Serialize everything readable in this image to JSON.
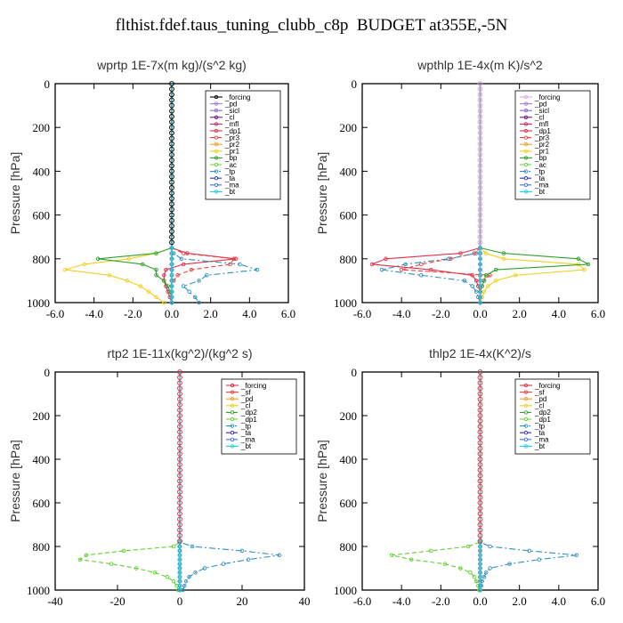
{
  "figure_title": "flthist.fdef.taus_tuning_clubb_c8p  BUDGET at355E,-5N",
  "chart_data": [
    {
      "type": "line",
      "title": "wprtp   1E-7x(m kg)/(s^2 kg)",
      "ylabel": "Pressure [hPa]",
      "xlim": [
        -6,
        6
      ],
      "ylim": [
        1000,
        0
      ],
      "y_inverted": true,
      "xticks": [
        -6,
        -4,
        -2,
        0,
        2,
        4,
        6
      ],
      "xtick_labels": [
        "-6.0",
        "-4.0",
        "-2.0",
        "0.0",
        "2.0",
        "4.0",
        "6.0"
      ],
      "yticks": [
        0,
        200,
        400,
        600,
        800,
        1000
      ],
      "ytick_labels": [
        "0",
        "200",
        "400",
        "600",
        "800",
        "1000"
      ],
      "grid": false,
      "legend_position": "top-right",
      "pressure_levels": [
        750,
        775,
        800,
        825,
        850,
        875,
        900,
        925,
        950,
        975,
        1000
      ],
      "series": [
        {
          "name": "_forcing",
          "color": "#000000",
          "style": "solid",
          "values": [
            0,
            0,
            0,
            0,
            0,
            0,
            0,
            0,
            0,
            0,
            0
          ]
        },
        {
          "name": "_pd",
          "color": "#b07cd8",
          "style": "solid",
          "values": [
            0,
            0,
            0,
            0,
            0,
            0,
            0,
            0,
            0,
            0,
            0
          ]
        },
        {
          "name": "_sicl",
          "color": "#8a6ad0",
          "style": "solid",
          "values": [
            0,
            0,
            0,
            0,
            0,
            0,
            0,
            0,
            0,
            0,
            0
          ]
        },
        {
          "name": "_cl",
          "color": "#6a1a8a",
          "style": "solid",
          "values": [
            0,
            0,
            0,
            0,
            0,
            0,
            0,
            0,
            0,
            0,
            0
          ]
        },
        {
          "name": "_mfl",
          "color": "#c0305a",
          "style": "solid",
          "values": [
            0,
            0,
            0,
            0,
            0,
            0,
            0,
            0,
            0,
            0,
            0
          ]
        },
        {
          "name": "_dp1",
          "color": "#e0304a",
          "style": "solid",
          "values": [
            0,
            0.8,
            3.3,
            0.6,
            -0.3,
            -0.4,
            -0.4,
            -0.3,
            -0.2,
            -0.1,
            0
          ]
        },
        {
          "name": "_pr3",
          "color": "#f04040",
          "style": "dashed",
          "values": [
            0,
            0.6,
            3.2,
            3.0,
            1.0,
            0.3,
            0.1,
            0,
            0,
            0,
            0
          ]
        },
        {
          "name": "_pr2",
          "color": "#f0a030",
          "style": "solid",
          "values": [
            0,
            0,
            0,
            0,
            0,
            0,
            0,
            0,
            0,
            0,
            0
          ]
        },
        {
          "name": "_pr1",
          "color": "#f0d020",
          "style": "solid",
          "values": [
            0,
            -0.8,
            -2.2,
            -4.5,
            -5.5,
            -3.2,
            -2.3,
            -1.6,
            -1.2,
            -0.8,
            -0.4
          ]
        },
        {
          "name": "_bp",
          "color": "#30a030",
          "style": "solid",
          "values": [
            0,
            -0.8,
            -3.8,
            -1.5,
            -0.8,
            -0.8,
            -0.4,
            -0.2,
            -0.1,
            0,
            0
          ]
        },
        {
          "name": "_ac",
          "color": "#60d030",
          "style": "dashed",
          "values": [
            0,
            0,
            0,
            0,
            0,
            0,
            0,
            0,
            0,
            0,
            0
          ]
        },
        {
          "name": "_tp",
          "color": "#3090c0",
          "style": "dashdot",
          "values": [
            0,
            0.1,
            0.5,
            3.5,
            4.4,
            1.8,
            1.4,
            0.6,
            0.9,
            1.2,
            1.4
          ]
        },
        {
          "name": "_ta",
          "color": "#3030b0",
          "style": "dashed",
          "values": [
            0,
            0,
            0,
            0,
            0,
            0,
            0,
            0,
            0,
            0,
            0
          ]
        },
        {
          "name": "_ma",
          "color": "#4070f0",
          "style": "dashed",
          "values": [
            0,
            0,
            0,
            0,
            0,
            0,
            0,
            0,
            0,
            0,
            0
          ]
        },
        {
          "name": "_bt",
          "color": "#20d0e0",
          "style": "solid",
          "values": [
            0,
            0,
            0,
            0,
            0,
            0,
            0,
            0,
            0,
            0,
            0
          ]
        }
      ]
    },
    {
      "type": "line",
      "title": "wpthlp   1E-4x(m K)/s^2",
      "ylabel": "Pressure [hPa]",
      "xlim": [
        -6,
        6
      ],
      "ylim": [
        1000,
        0
      ],
      "y_inverted": true,
      "xticks": [
        -6,
        -4,
        -2,
        0,
        2,
        4,
        6
      ],
      "xtick_labels": [
        "-6.0",
        "-4.0",
        "-2.0",
        "0.0",
        "2.0",
        "4.0",
        "6.0"
      ],
      "yticks": [
        0,
        200,
        400,
        600,
        800,
        1000
      ],
      "ytick_labels": [
        "0",
        "200",
        "400",
        "600",
        "800",
        "1000"
      ],
      "grid": false,
      "legend_position": "top-right",
      "pressure_levels": [
        750,
        775,
        800,
        825,
        850,
        875,
        900,
        925,
        950,
        975,
        1000
      ],
      "series": [
        {
          "name": "_forcing",
          "color": "#d8a8e8",
          "style": "solid",
          "values": [
            0,
            0,
            0,
            0,
            0,
            0,
            0,
            0,
            0,
            0,
            0
          ]
        },
        {
          "name": "_pd",
          "color": "#b07cd8",
          "style": "solid",
          "values": [
            0,
            0,
            0,
            0,
            0,
            0,
            0,
            0,
            0,
            0,
            0
          ]
        },
        {
          "name": "_sicl",
          "color": "#8a6ad0",
          "style": "solid",
          "values": [
            0,
            0,
            0,
            0,
            0,
            0,
            0,
            0,
            0,
            0,
            0
          ]
        },
        {
          "name": "_cl",
          "color": "#6a1a8a",
          "style": "solid",
          "values": [
            0,
            0,
            0,
            0,
            0,
            0,
            0,
            0,
            0,
            0,
            0
          ]
        },
        {
          "name": "_mfl",
          "color": "#c0305a",
          "style": "solid",
          "values": [
            0,
            0,
            0,
            0,
            0,
            0,
            0,
            0,
            0,
            0,
            0
          ]
        },
        {
          "name": "_dp1",
          "color": "#e0304a",
          "style": "solid",
          "values": [
            0,
            -1.0,
            -4.8,
            -5.5,
            -2.5,
            -0.4,
            -0.2,
            -0.1,
            0,
            0,
            0
          ]
        },
        {
          "name": "_pr3",
          "color": "#f04040",
          "style": "dashed",
          "values": [
            0,
            -0.3,
            -1.5,
            -3.0,
            -4.0,
            0.5,
            0.2,
            0.1,
            0,
            0,
            0
          ]
        },
        {
          "name": "_pr2",
          "color": "#f0a030",
          "style": "solid",
          "values": [
            0,
            0,
            0,
            0,
            0,
            0,
            0,
            0,
            0,
            0,
            0
          ]
        },
        {
          "name": "_pr1",
          "color": "#f0d020",
          "style": "solid",
          "values": [
            0,
            0.3,
            1.2,
            5.0,
            5.3,
            1.8,
            0.8,
            0.4,
            0.2,
            0.1,
            0
          ]
        },
        {
          "name": "_bp",
          "color": "#30a030",
          "style": "solid",
          "values": [
            0,
            1.2,
            5.0,
            5.5,
            0.8,
            0.3,
            0.2,
            0.1,
            0,
            0,
            0
          ]
        },
        {
          "name": "_ac",
          "color": "#60d030",
          "style": "dashed",
          "values": [
            0,
            0,
            0,
            0,
            0,
            0,
            0,
            0,
            0,
            0,
            0
          ]
        },
        {
          "name": "_tp",
          "color": "#3090c0",
          "style": "dashdot",
          "values": [
            0,
            -0.2,
            -1.6,
            -3.8,
            -5.0,
            -3.0,
            -0.8,
            -0.4,
            -0.2,
            -0.1,
            0
          ]
        },
        {
          "name": "_ta",
          "color": "#3030b0",
          "style": "dashed",
          "values": [
            0,
            0,
            0,
            0,
            0,
            0,
            0,
            0,
            0,
            0,
            0
          ]
        },
        {
          "name": "_ma",
          "color": "#4070f0",
          "style": "dashed",
          "values": [
            0,
            0,
            0,
            0,
            0,
            0,
            0,
            0,
            0,
            0,
            0
          ]
        },
        {
          "name": "_bt",
          "color": "#20d0e0",
          "style": "solid",
          "values": [
            0,
            0,
            0,
            0,
            0,
            0,
            0,
            0,
            0,
            0,
            0
          ]
        }
      ]
    },
    {
      "type": "line",
      "title": "rtp2   1E-11x(kg^2)/(kg^2 s)",
      "ylabel": "Pressure [hPa]",
      "xlim": [
        -40,
        40
      ],
      "ylim": [
        1000,
        0
      ],
      "y_inverted": true,
      "xticks": [
        -40,
        -20,
        0,
        20,
        40
      ],
      "xtick_labels": [
        "-40",
        "-20",
        "0",
        "20",
        "40"
      ],
      "yticks": [
        0,
        200,
        400,
        600,
        800,
        1000
      ],
      "ytick_labels": [
        "0",
        "200",
        "400",
        "600",
        "800",
        "1000"
      ],
      "grid": false,
      "legend_position": "top-right",
      "pressure_levels": [
        780,
        800,
        820,
        840,
        860,
        880,
        900,
        920,
        940,
        960,
        980,
        1000
      ],
      "series": [
        {
          "name": "_forcing",
          "color": "#e0304a",
          "style": "solid",
          "values": [
            0,
            0,
            0,
            0,
            0,
            0,
            0,
            0,
            0,
            0,
            0,
            0
          ]
        },
        {
          "name": "_sf",
          "color": "#f04040",
          "style": "solid",
          "values": [
            0,
            0,
            0,
            0,
            0,
            0,
            0,
            0,
            0,
            0,
            0,
            0
          ]
        },
        {
          "name": "_pd",
          "color": "#f0a030",
          "style": "solid",
          "values": [
            0,
            0,
            0,
            0,
            0,
            0,
            0,
            0,
            0,
            0,
            0,
            0
          ]
        },
        {
          "name": "_cl",
          "color": "#f0d020",
          "style": "solid",
          "values": [
            0,
            0,
            0,
            0,
            0,
            0,
            0,
            0,
            0,
            0,
            0,
            0
          ]
        },
        {
          "name": "_dp2",
          "color": "#30a030",
          "style": "dashed",
          "values": [
            0,
            0,
            0,
            0,
            0,
            0,
            0,
            0,
            0,
            0,
            0,
            0
          ]
        },
        {
          "name": "_dp1",
          "color": "#60d030",
          "style": "dashed",
          "values": [
            0,
            -2,
            -18,
            -30,
            -32,
            -22,
            -14,
            -8,
            -4,
            -2,
            -1,
            -0.5
          ]
        },
        {
          "name": "_tp",
          "color": "#3090c0",
          "style": "dashdot",
          "values": [
            0,
            4,
            20,
            32,
            22,
            14,
            8,
            5,
            3,
            2,
            1.5,
            1
          ]
        },
        {
          "name": "_ta",
          "color": "#3030b0",
          "style": "dashed",
          "values": [
            0,
            0,
            0,
            0,
            0,
            0,
            0,
            0,
            0,
            0,
            0,
            0
          ]
        },
        {
          "name": "_ma",
          "color": "#4070f0",
          "style": "dashed",
          "values": [
            0,
            0,
            0,
            0,
            0,
            0,
            0,
            0,
            0,
            0,
            0,
            0
          ]
        },
        {
          "name": "_bt",
          "color": "#20d0e0",
          "style": "solid",
          "values": [
            0,
            0,
            0,
            0,
            0,
            0,
            0,
            0,
            0,
            0,
            0,
            0
          ]
        }
      ]
    },
    {
      "type": "line",
      "title": "thlp2   1E-4x(K^2)/s",
      "ylabel": "Pressure [hPa]",
      "xlim": [
        -6,
        6
      ],
      "ylim": [
        1000,
        0
      ],
      "y_inverted": true,
      "xticks": [
        -6,
        -4,
        -2,
        0,
        2,
        4,
        6
      ],
      "xtick_labels": [
        "-6.0",
        "-4.0",
        "-2.0",
        "0.0",
        "2.0",
        "4.0",
        "6.0"
      ],
      "yticks": [
        0,
        200,
        400,
        600,
        800,
        1000
      ],
      "ytick_labels": [
        "0",
        "200",
        "400",
        "600",
        "800",
        "1000"
      ],
      "grid": false,
      "legend_position": "top-right",
      "pressure_levels": [
        780,
        800,
        820,
        840,
        860,
        880,
        900,
        920,
        940,
        960,
        980,
        1000
      ],
      "series": [
        {
          "name": "_forcing",
          "color": "#e0304a",
          "style": "solid",
          "values": [
            0,
            0,
            0,
            0,
            0,
            0,
            0,
            0,
            0,
            0,
            0,
            0
          ]
        },
        {
          "name": "_sf",
          "color": "#f04040",
          "style": "solid",
          "values": [
            0,
            0,
            0,
            0,
            0,
            0,
            0,
            0,
            0,
            0,
            0,
            0
          ]
        },
        {
          "name": "_pd",
          "color": "#f0a030",
          "style": "solid",
          "values": [
            0,
            0,
            0,
            0,
            0,
            0,
            0,
            0,
            0,
            0,
            0,
            0
          ]
        },
        {
          "name": "_cl",
          "color": "#f0d020",
          "style": "solid",
          "values": [
            0,
            0,
            0,
            0,
            0,
            0,
            0,
            0,
            0,
            0,
            0,
            0
          ]
        },
        {
          "name": "_dp2",
          "color": "#30a030",
          "style": "dashed",
          "values": [
            0,
            0,
            0,
            0,
            0,
            0,
            0,
            0,
            0,
            0,
            0,
            0
          ]
        },
        {
          "name": "_dp1",
          "color": "#60d030",
          "style": "dashed",
          "values": [
            0,
            -0.6,
            -2.5,
            -4.5,
            -3.5,
            -1.8,
            -1.0,
            -0.5,
            -0.3,
            -0.2,
            -0.1,
            -0.05
          ]
        },
        {
          "name": "_tp",
          "color": "#3090c0",
          "style": "dashdot",
          "values": [
            0,
            0.5,
            2.5,
            4.9,
            3.0,
            1.5,
            0.5,
            0.3,
            0.2,
            0.1,
            0.05,
            0
          ]
        },
        {
          "name": "_ta",
          "color": "#3030b0",
          "style": "dashed",
          "values": [
            0,
            0,
            0,
            0,
            0,
            0,
            0,
            0,
            0,
            0,
            0,
            0
          ]
        },
        {
          "name": "_ma",
          "color": "#4070f0",
          "style": "dashed",
          "values": [
            0,
            0,
            0,
            0,
            0,
            0,
            0,
            0,
            0,
            0,
            0,
            0
          ]
        },
        {
          "name": "_bt",
          "color": "#20d0e0",
          "style": "solid",
          "values": [
            0,
            0,
            0,
            0,
            0,
            0,
            0,
            0,
            0,
            0,
            0,
            0
          ]
        }
      ]
    }
  ]
}
